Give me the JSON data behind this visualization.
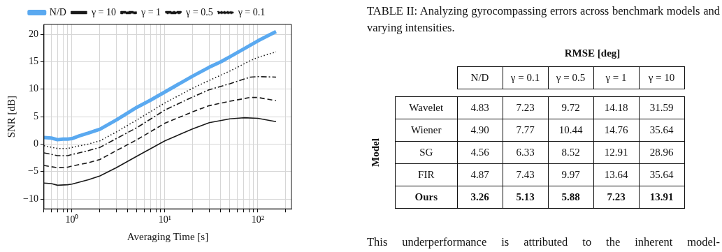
{
  "chart_data": [
    {
      "type": "line",
      "xlabel": "Averaging Time [s]",
      "ylabel": "SNR [dB]",
      "log": "x",
      "grid": true,
      "legend": "top",
      "marker": "none",
      "xlim": [
        0.5,
        230
      ],
      "ylim": [
        -11.8,
        21.8
      ],
      "xticks": [
        {
          "value": 0.5,
          "label": null
        },
        {
          "value": 0.6,
          "label": null
        },
        {
          "value": 0.7,
          "label": null
        },
        {
          "value": 0.8,
          "label": null
        },
        {
          "value": 0.9,
          "label": null
        },
        {
          "value": 1,
          "label": "10⁰"
        },
        {
          "value": 2,
          "label": null
        },
        {
          "value": 3,
          "label": null
        },
        {
          "value": 4,
          "label": null
        },
        {
          "value": 5,
          "label": null
        },
        {
          "value": 6,
          "label": null
        },
        {
          "value": 7,
          "label": null
        },
        {
          "value": 8,
          "label": null
        },
        {
          "value": 9,
          "label": null
        },
        {
          "value": 10,
          "label": "10¹"
        },
        {
          "value": 20,
          "label": null
        },
        {
          "value": 30,
          "label": null
        },
        {
          "value": 40,
          "label": null
        },
        {
          "value": 50,
          "label": null
        },
        {
          "value": 60,
          "label": null
        },
        {
          "value": 70,
          "label": null
        },
        {
          "value": 80,
          "label": null
        },
        {
          "value": 90,
          "label": null
        },
        {
          "value": 100,
          "label": "10²"
        },
        {
          "value": 200,
          "label": null
        }
      ],
      "yticks": [
        -10,
        -5,
        0,
        5,
        10,
        15,
        20
      ],
      "series": [
        {
          "name": "N/D",
          "color": "#5aa9f0",
          "line_style": "solid",
          "x": [
            0.5,
            0.6,
            0.7,
            0.8,
            0.9,
            1,
            1.2,
            1.5,
            2,
            3,
            4,
            5,
            7,
            10,
            15,
            20,
            30,
            40,
            50,
            70,
            100,
            130,
            157
          ],
          "values": [
            1.2,
            1.1,
            0.8,
            0.9,
            0.9,
            1.0,
            1.5,
            2.0,
            2.7,
            4.4,
            5.7,
            6.7,
            8.0,
            9.5,
            11.2,
            12.4,
            14.0,
            15.0,
            15.9,
            17.3,
            18.8,
            19.8,
            20.5
          ]
        },
        {
          "name": "γ = 10",
          "color": "#1a1a1a",
          "line_style": "solid",
          "x": [
            0.5,
            0.6,
            0.7,
            0.9,
            1,
            1.5,
            2,
            3,
            5,
            10,
            20,
            30,
            50,
            70,
            100,
            157
          ],
          "values": [
            -7.1,
            -7.2,
            -7.5,
            -7.4,
            -7.3,
            -6.5,
            -5.8,
            -4.3,
            -2.2,
            0.6,
            2.8,
            3.9,
            4.6,
            4.8,
            4.7,
            4.1
          ]
        },
        {
          "name": "γ = 1",
          "color": "#1a1a1a",
          "line_style": "dashed",
          "x": [
            0.5,
            0.7,
            0.9,
            1,
            1.5,
            2,
            3,
            5,
            10,
            20,
            30,
            50,
            83,
            100,
            157
          ],
          "values": [
            -3.9,
            -4.3,
            -4.2,
            -4.0,
            -3.4,
            -2.8,
            -1.2,
            0.8,
            3.8,
            5.9,
            7.0,
            7.8,
            8.5,
            8.5,
            7.9
          ]
        },
        {
          "name": "γ = 0.5",
          "color": "#1a1a1a",
          "line_style": "dashdot",
          "x": [
            0.5,
            0.7,
            0.9,
            1,
            1.5,
            2,
            3,
            5,
            10,
            20,
            30,
            50,
            83,
            100,
            157
          ],
          "values": [
            -1.6,
            -2.1,
            -2.1,
            -1.9,
            -1.2,
            -0.6,
            1.0,
            3.0,
            6.2,
            8.6,
            9.9,
            11.0,
            12.2,
            12.3,
            12.2
          ]
        },
        {
          "name": "γ = 0.1",
          "color": "#1a1a1a",
          "line_style": "dotted",
          "x": [
            0.5,
            0.7,
            0.9,
            1,
            1.5,
            2,
            3,
            5,
            10,
            20,
            30,
            50,
            83,
            100,
            157
          ],
          "values": [
            -0.3,
            -0.8,
            -0.8,
            -0.6,
            0.0,
            0.6,
            2.2,
            4.4,
            7.5,
            10.2,
            11.6,
            13.3,
            15.2,
            15.8,
            16.8
          ]
        }
      ]
    },
    {
      "type": "heatmap",
      "title": "TABLE II: Analyzing gyrocompassing errors across benchmark models and varying intensities.",
      "xlabel": "RMSE [deg]",
      "ylabel": "Model",
      "data_labels": true,
      "categories": [
        "N/D",
        "γ = 0.1",
        "γ = 0.5",
        "γ = 1",
        "γ = 10"
      ],
      "y_categories": [
        "Wavelet",
        "Wiener",
        "SG",
        "FIR",
        "Ours"
      ],
      "cells": [
        [
          4.83,
          7.23,
          9.72,
          14.18,
          31.59
        ],
        [
          4.9,
          7.77,
          10.44,
          14.76,
          35.64
        ],
        [
          4.56,
          6.33,
          8.52,
          12.91,
          28.96
        ],
        [
          4.87,
          7.43,
          9.97,
          13.64,
          35.64
        ],
        [
          3.26,
          5.13,
          5.88,
          7.23,
          13.91
        ]
      ],
      "cell_labels": [
        [
          "4.83",
          "7.23",
          "9.72",
          "14.18",
          "31.59"
        ],
        [
          "4.90",
          "7.77",
          "10.44",
          "14.76",
          "35.64"
        ],
        [
          "4.56",
          "6.33",
          "8.52",
          "12.91",
          "28.96"
        ],
        [
          "4.87",
          "7.43",
          "9.97",
          "13.64",
          "35.64"
        ],
        [
          "3.26",
          "5.13",
          "5.88",
          "7.23",
          "13.91"
        ]
      ],
      "annotations": [
        "This underperformance is attributed to the inherent model-"
      ]
    }
  ]
}
